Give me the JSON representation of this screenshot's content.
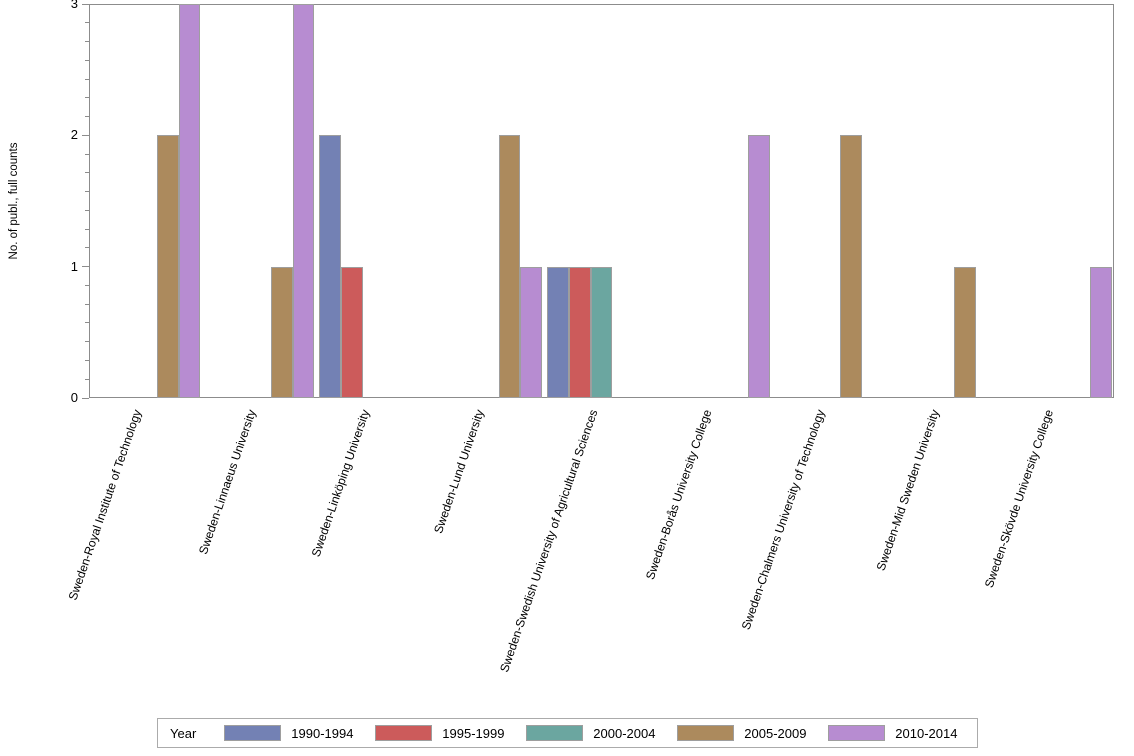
{
  "chart_data": {
    "type": "bar",
    "title": "",
    "xlabel": "",
    "ylabel": "No. of publ., full counts",
    "ylim": [
      0,
      3
    ],
    "yticks": [
      0,
      1,
      2,
      3
    ],
    "y_minor_ticks_per_interval": 6,
    "grid": false,
    "legend_title": "Year",
    "legend_position": "bottom",
    "colors": {
      "axis": "#8c8c8c",
      "bar_border": "#9e9e9e",
      "legend_border": "#ababab",
      "text": "#000000"
    },
    "categories": [
      "Sweden-Royal Institute of Technology",
      "Sweden-Linnaeus University",
      "Sweden-Linköping University",
      "Sweden-Lund University",
      "Sweden-Swedish University of Agricultural Sciences",
      "Sweden-Borås University College",
      "Sweden-Chalmers University of Technology",
      "Sweden-Mid Sweden University",
      "Sweden-Skövde University College"
    ],
    "series": [
      {
        "name": "1990-1994",
        "color": "#7381b4",
        "values": [
          0,
          0,
          2,
          0,
          1,
          0,
          0,
          0,
          0
        ]
      },
      {
        "name": "1995-1999",
        "color": "#cc5b5b",
        "values": [
          0,
          0,
          1,
          0,
          1,
          0,
          0,
          0,
          0
        ]
      },
      {
        "name": "2000-2004",
        "color": "#6ba6a0",
        "values": [
          0,
          0,
          0,
          0,
          1,
          0,
          0,
          0,
          0
        ]
      },
      {
        "name": "2005-2009",
        "color": "#ac8a5d",
        "values": [
          2,
          1,
          0,
          2,
          0,
          0,
          2,
          1,
          0
        ]
      },
      {
        "name": "2010-2014",
        "color": "#b78cd1",
        "values": [
          3,
          3,
          0,
          1,
          0,
          2,
          0,
          0,
          1
        ]
      }
    ]
  }
}
